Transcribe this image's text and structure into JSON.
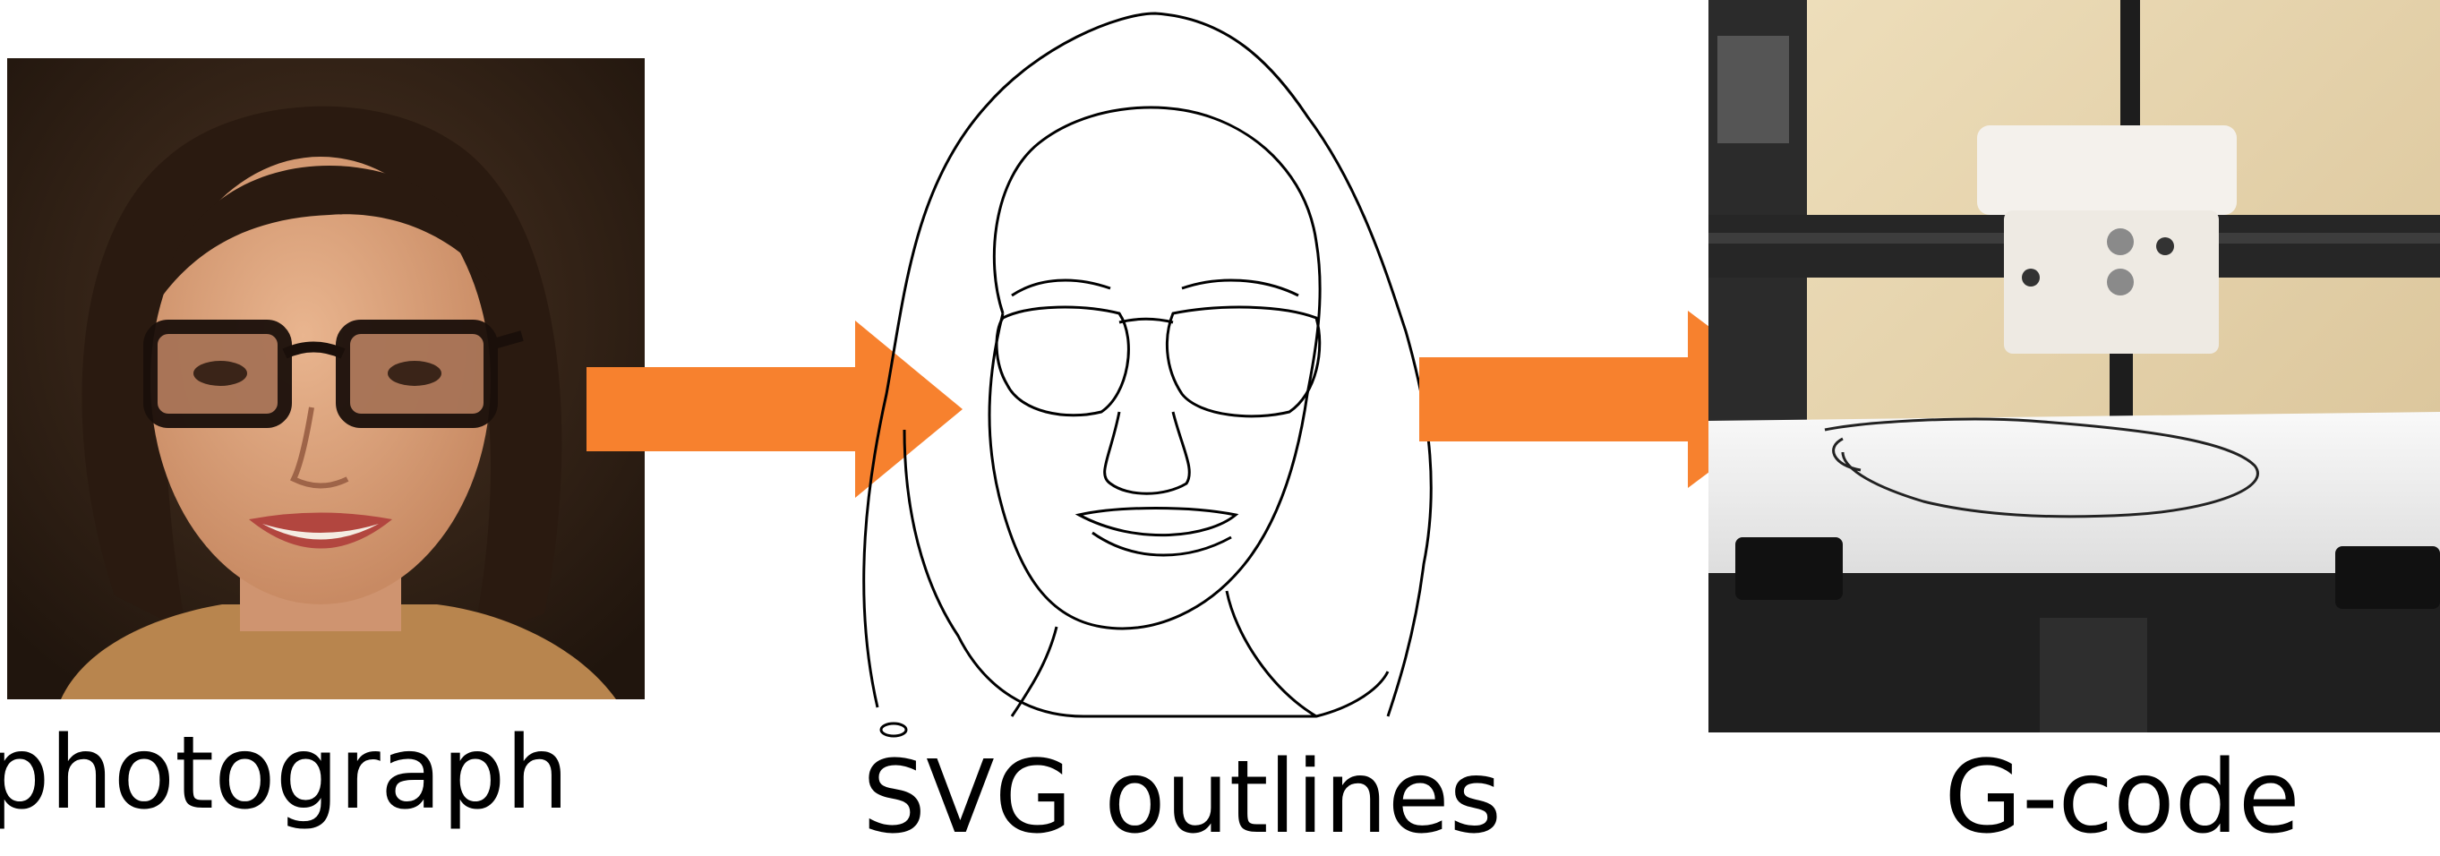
{
  "stages": [
    {
      "id": "photograph",
      "caption": "photograph"
    },
    {
      "id": "svg-outlines",
      "caption": "SVG outlines"
    },
    {
      "id": "g-code",
      "caption": "G-code"
    }
  ],
  "arrows": {
    "color": "#F7812E",
    "count": 2
  },
  "colors": {
    "background": "#FFFFFF",
    "outline_stroke": "#000000",
    "photo_backdrop": "#2A1C12",
    "printer_wall": "#E3CFA4",
    "printer_frame": "#2B2B2B",
    "pen_holder": "#F4F1EC"
  }
}
